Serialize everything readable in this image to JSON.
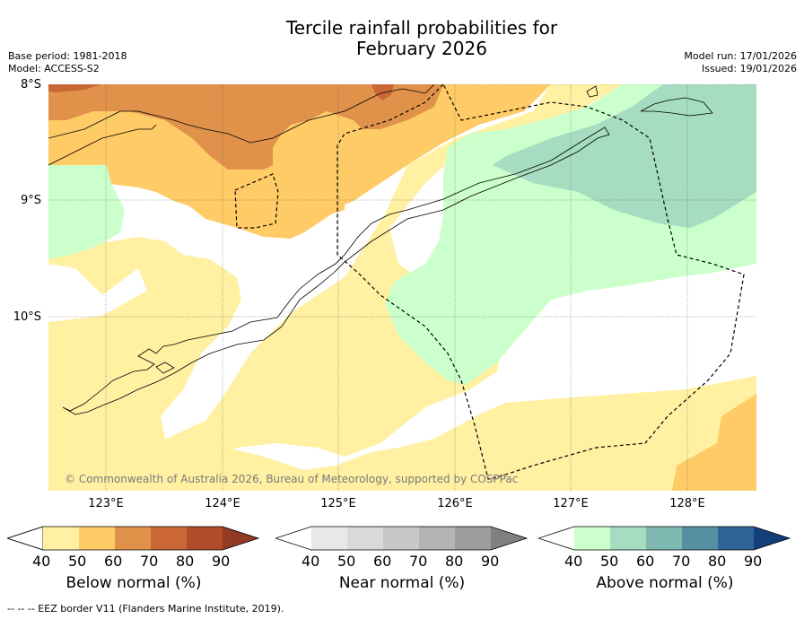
{
  "title_line1": "Tercile rainfall probabilities for",
  "title_line2": "February 2026",
  "base_period": "Base period: 1981-2018",
  "model": "Model: ACCESS-S2",
  "model_run": "Model run: 17/01/2026",
  "issued": "Issued: 19/01/2026",
  "lat_labels": [
    "8°S",
    "9°S",
    "10°S"
  ],
  "lon_labels": [
    "123°E",
    "124°E",
    "125°E",
    "126°E",
    "127°E",
    "128°E"
  ],
  "copyright": "© Commonwealth of Australia 2026, Bureau of Meteorology, supported by COSPPac",
  "colorbars": [
    {
      "title": "Below normal (%)",
      "ticks": [
        "40",
        "50",
        "60",
        "70",
        "80",
        "90"
      ],
      "colors": [
        "#ffffff",
        "#fff0a2",
        "#ffcb66",
        "#e0924a",
        "#cb6637",
        "#b04c2a",
        "#923a24"
      ]
    },
    {
      "title": "Near normal (%)",
      "ticks": [
        "40",
        "50",
        "60",
        "70",
        "80",
        "90"
      ],
      "colors": [
        "#ffffff",
        "#e8e8e8",
        "#d9d9d9",
        "#c8c8c8",
        "#b4b4b4",
        "#9d9d9d",
        "#808080"
      ]
    },
    {
      "title": "Above normal (%)",
      "ticks": [
        "40",
        "50",
        "60",
        "70",
        "80",
        "90"
      ],
      "colors": [
        "#ffffff",
        "#cbffcb",
        "#a6dcc0",
        "#7fb9b1",
        "#558fa2",
        "#2f6499",
        "#143e7a"
      ]
    }
  ],
  "footnote": "--  --  -- EEZ border V11 (Flanders Marine Institute, 2019).",
  "category_colors": {
    "below_40_50": "#fff0a2",
    "below_50_60": "#ffcb66",
    "below_60_70": "#e0924a",
    "below_70_80": "#cb6637",
    "above_40_50": "#cbffcb",
    "above_50_60": "#a6dcc0",
    "neutral": "#ffffff"
  }
}
